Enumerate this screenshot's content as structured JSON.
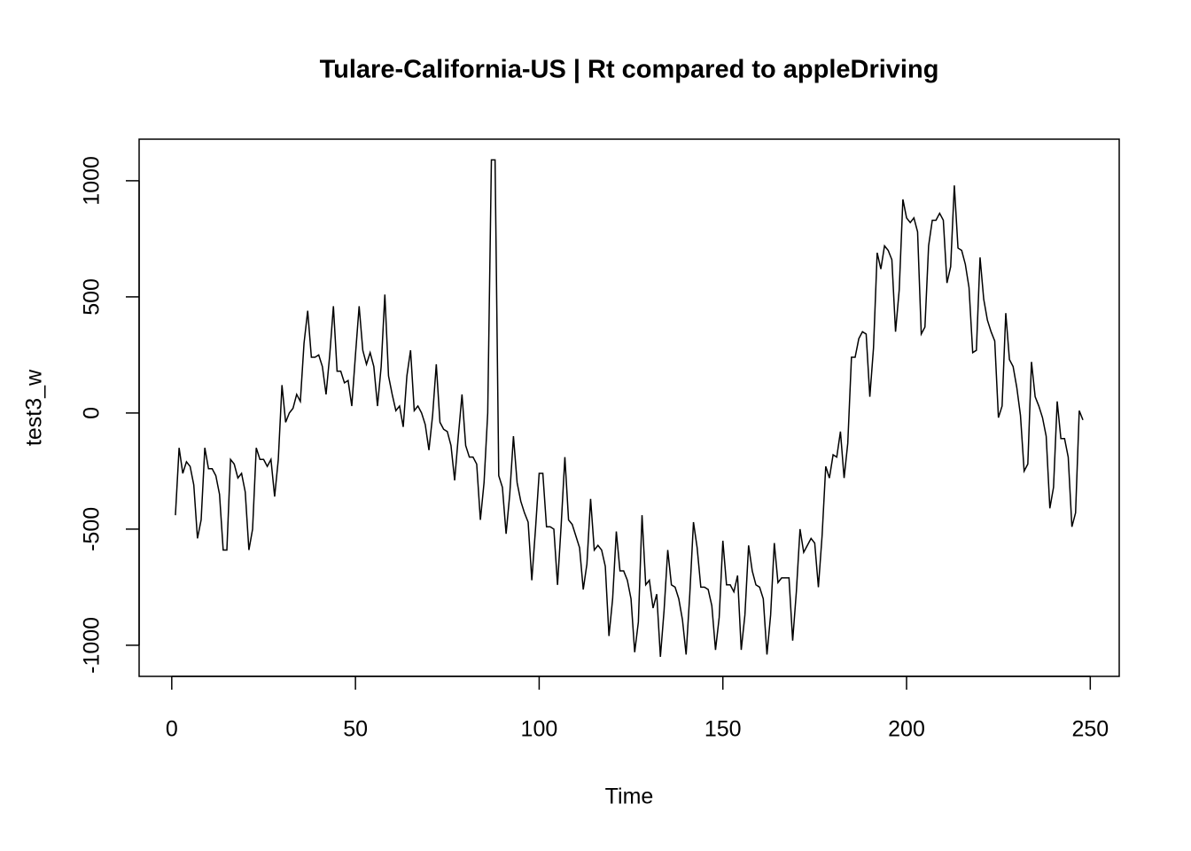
{
  "chart_data": {
    "type": "line",
    "title": "Tulare-California-US | Rt compared to appleDriving",
    "x_label": "Time",
    "y_label": "test3_w",
    "x": [
      1,
      2,
      3,
      4,
      5,
      6,
      7,
      8,
      9,
      10,
      11,
      12,
      13,
      14,
      15,
      16,
      17,
      18,
      19,
      20,
      21,
      22,
      23,
      24,
      25,
      26,
      27,
      28,
      29,
      30,
      31,
      32,
      33,
      34,
      35,
      36,
      37,
      38,
      39,
      40,
      41,
      42,
      43,
      44,
      45,
      46,
      47,
      48,
      49,
      50,
      51,
      52,
      53,
      54,
      55,
      56,
      57,
      58,
      59,
      60,
      61,
      62,
      63,
      64,
      65,
      66,
      67,
      68,
      69,
      70,
      71,
      72,
      73,
      74,
      75,
      76,
      77,
      78,
      79,
      80,
      81,
      82,
      83,
      84,
      85,
      86,
      87,
      88,
      89,
      90,
      91,
      92,
      93,
      94,
      95,
      96,
      97,
      98,
      99,
      100,
      101,
      102,
      103,
      104,
      105,
      106,
      107,
      108,
      109,
      110,
      111,
      112,
      113,
      114,
      115,
      116,
      117,
      118,
      119,
      120,
      121,
      122,
      123,
      124,
      125,
      126,
      127,
      128,
      129,
      130,
      131,
      132,
      133,
      134,
      135,
      136,
      137,
      138,
      139,
      140,
      141,
      142,
      143,
      144,
      145,
      146,
      147,
      148,
      149,
      150,
      151,
      152,
      153,
      154,
      155,
      156,
      157,
      158,
      159,
      160,
      161,
      162,
      163,
      164,
      165,
      166,
      167,
      168,
      169,
      170,
      171,
      172,
      173,
      174,
      175,
      176,
      177,
      178,
      179,
      180,
      181,
      182,
      183,
      184,
      185,
      186,
      187,
      188,
      189,
      190,
      191,
      192,
      193,
      194,
      195,
      196,
      197,
      198,
      199,
      200,
      201,
      202,
      203,
      204,
      205,
      206,
      207,
      208,
      209,
      210,
      211,
      212,
      213,
      214,
      215,
      216,
      217,
      218,
      219,
      220,
      221,
      222,
      223,
      224,
      225,
      226,
      227,
      228,
      229,
      230,
      231,
      232,
      233,
      234,
      235,
      236,
      237,
      238,
      239,
      240,
      241,
      242,
      243,
      244,
      245,
      246,
      247,
      248
    ],
    "series": [
      {
        "color": "#000000",
        "values": [
          -440,
          -150,
          -260,
          -210,
          -230,
          -310,
          -540,
          -460,
          -150,
          -240,
          -240,
          -270,
          -350,
          -590,
          -590,
          -200,
          -220,
          -280,
          -260,
          -340,
          -590,
          -500,
          -150,
          -200,
          -200,
          -230,
          -200,
          -360,
          -200,
          120,
          -40,
          0,
          20,
          80,
          50,
          300,
          440,
          240,
          240,
          250,
          200,
          80,
          250,
          460,
          180,
          180,
          130,
          140,
          30,
          250,
          460,
          270,
          210,
          260,
          200,
          30,
          200,
          510,
          160,
          80,
          10,
          30,
          -60,
          160,
          270,
          10,
          30,
          0,
          -50,
          -160,
          -10,
          210,
          -40,
          -70,
          -80,
          -140,
          -290,
          -100,
          80,
          -140,
          -190,
          -190,
          -220,
          -460,
          -300,
          0,
          1090,
          1090,
          -270,
          -320,
          -520,
          -350,
          -100,
          -300,
          -380,
          -430,
          -470,
          -720,
          -500,
          -260,
          -260,
          -490,
          -490,
          -500,
          -740,
          -480,
          -190,
          -460,
          -480,
          -530,
          -580,
          -760,
          -650,
          -370,
          -590,
          -570,
          -590,
          -660,
          -960,
          -800,
          -510,
          -680,
          -680,
          -720,
          -800,
          -1030,
          -900,
          -440,
          -740,
          -720,
          -840,
          -780,
          -1050,
          -850,
          -590,
          -740,
          -750,
          -800,
          -890,
          -1040,
          -780,
          -470,
          -580,
          -750,
          -750,
          -760,
          -830,
          -1020,
          -880,
          -550,
          -740,
          -740,
          -770,
          -700,
          -1020,
          -870,
          -570,
          -680,
          -740,
          -750,
          -800,
          -1040,
          -870,
          -560,
          -730,
          -710,
          -710,
          -710,
          -980,
          -770,
          -500,
          -600,
          -570,
          -540,
          -560,
          -750,
          -530,
          -230,
          -280,
          -180,
          -190,
          -80,
          -280,
          -130,
          240,
          240,
          320,
          350,
          340,
          70,
          280,
          690,
          620,
          720,
          700,
          660,
          350,
          530,
          920,
          840,
          820,
          840,
          780,
          340,
          370,
          720,
          830,
          830,
          860,
          830,
          560,
          630,
          980,
          710,
          700,
          640,
          540,
          260,
          270,
          670,
          490,
          400,
          350,
          310,
          -20,
          30,
          430,
          230,
          200,
          110,
          -10,
          -250,
          -220,
          220,
          70,
          30,
          -20,
          -100,
          -410,
          -320,
          50,
          -110,
          -110,
          -190,
          -490,
          -430,
          10,
          -30
        ]
      }
    ],
    "xlim": [
      -8.88,
      257.88
    ],
    "ylim": [
      -1134,
      1179
    ],
    "xticks": [
      0,
      50,
      100,
      150,
      200,
      250
    ],
    "yticks": [
      -1000,
      -500,
      0,
      500,
      1000
    ]
  }
}
